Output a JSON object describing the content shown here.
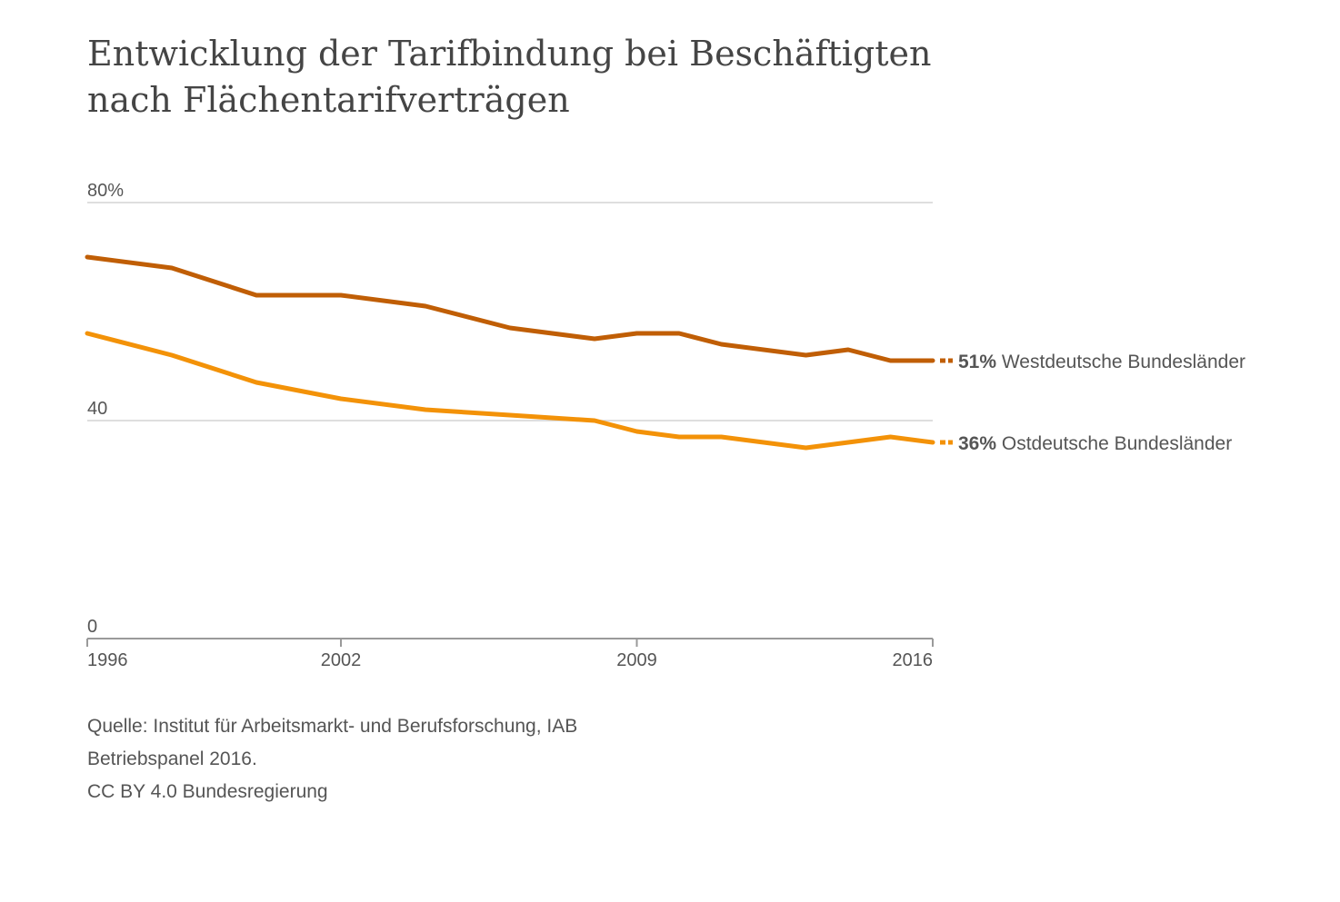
{
  "title": "Entwicklung der Tarifbindung bei Beschäftigten nach Flächentarifverträgen",
  "source_lines": [
    "Quelle: Institut für Arbeitsmarkt- und Berufsforschung, IAB",
    "Betriebspanel 2016.",
    "CC BY 4.0 Bundesregierung"
  ],
  "colors": {
    "west": "#c05e05",
    "east": "#f39208",
    "grid": "#d4d4d4",
    "axis": "#9a9a9a",
    "text": "#555555"
  },
  "chart_data": {
    "type": "line",
    "title": "Entwicklung der Tarifbindung bei Beschäftigten nach Flächentarifverträgen",
    "xlabel": "",
    "ylabel": "",
    "xlim": [
      1996,
      2016
    ],
    "ylim": [
      0,
      80
    ],
    "grid": true,
    "y_ticks": [
      {
        "value": 0,
        "label": "0"
      },
      {
        "value": 40,
        "label": "40"
      },
      {
        "value": 80,
        "label": "80%"
      }
    ],
    "x_ticks": [
      {
        "value": 1996,
        "label": "1996"
      },
      {
        "value": 2002,
        "label": "2002"
      },
      {
        "value": 2009,
        "label": "2009"
      },
      {
        "value": 2016,
        "label": "2016"
      }
    ],
    "x": [
      1996,
      1998,
      2000,
      2002,
      2004,
      2006,
      2008,
      2009,
      2010,
      2011,
      2013,
      2014,
      2015,
      2016
    ],
    "series": [
      {
        "name": "Westdeutsche Bundesländer",
        "end_label": "51%",
        "color_key": "west",
        "values": [
          70,
          68,
          63,
          63,
          61,
          57,
          55,
          56,
          56,
          54,
          52,
          53,
          51,
          51
        ]
      },
      {
        "name": "Ostdeutsche Bundesländer",
        "end_label": "36%",
        "color_key": "east",
        "values": [
          56,
          52,
          47,
          44,
          42,
          41,
          40,
          38,
          37,
          37,
          35,
          36,
          37,
          36
        ]
      }
    ]
  }
}
